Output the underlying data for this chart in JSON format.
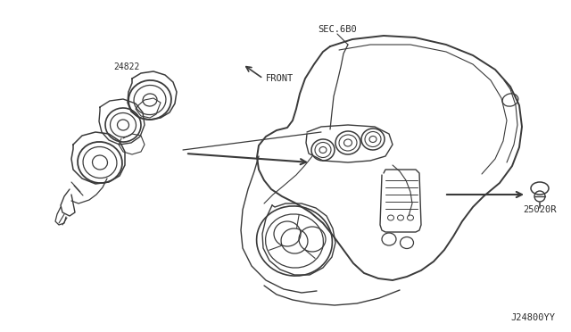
{
  "background_color": "#ffffff",
  "line_color": "#3a3a3a",
  "text_color": "#2a2a2a",
  "label_24822": "24822",
  "label_25020R": "25020R",
  "label_sec680": "SEC.6B0",
  "label_front": "FRONT",
  "label_j24800yy": "J24800YY",
  "fig_width": 6.4,
  "fig_height": 3.72,
  "dpi": 100
}
